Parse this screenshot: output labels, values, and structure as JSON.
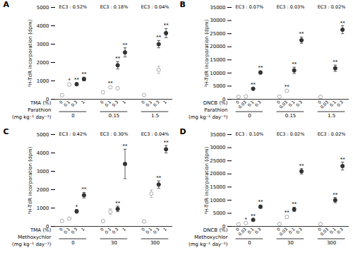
{
  "chart_data": [
    {
      "type": "scatter",
      "title": "A",
      "ylabel": "³H-TdR incorporation (dpm)",
      "xlabel_rows": [
        "TMA (%)",
        "Parathion",
        "(mg kg⁻¹ day⁻¹)"
      ],
      "categories": [
        "0",
        "0.1",
        "0.3",
        "1",
        "0",
        "0.1",
        "0.3",
        "1",
        "0",
        "0.1",
        "0.3",
        "1"
      ],
      "groups": [
        "0",
        "0.15",
        "1.5"
      ],
      "group_annotations": [
        "EC3 : 0.52%",
        "EC3 : 0.18%",
        "EC3 : 0.04%"
      ],
      "series": [
        {
          "color": "#aaaaaa",
          "marker": "open_circle",
          "values": [
            220,
            800,
            null,
            null,
            380,
            650,
            600,
            null,
            230,
            null,
            1600,
            null
          ],
          "errors": [
            30,
            80,
            null,
            null,
            50,
            60,
            60,
            null,
            30,
            null,
            200,
            null
          ]
        },
        {
          "color": "#333333",
          "marker": "circle",
          "values": [
            null,
            null,
            820,
            1100,
            null,
            null,
            1850,
            2550,
            null,
            null,
            3000,
            3600
          ],
          "errors": [
            null,
            null,
            80,
            100,
            null,
            null,
            200,
            250,
            null,
            null,
            200,
            250
          ]
        }
      ],
      "annotations": [
        null,
        "*",
        "**",
        "**",
        null,
        "**",
        "**",
        "**",
        null,
        null,
        "**",
        "**"
      ],
      "ylim": [
        0,
        5000
      ],
      "yticks": [
        0,
        1000,
        2000,
        3000,
        4000,
        5000
      ]
    },
    {
      "type": "scatter",
      "title": "B",
      "ylabel": "³H-TdR incorporation (dpm)",
      "xlabel_rows": [
        "DNCB (%)",
        "Parathion",
        "(mg kg⁻¹ day⁻¹)"
      ],
      "categories": [
        "0",
        "0.03",
        "0.1",
        "0.3",
        "0",
        "0.03",
        "0.1",
        "0.3",
        "0",
        "0.03",
        "0.1",
        "0.3"
      ],
      "groups": [
        "0",
        "0.15",
        "1.5"
      ],
      "group_annotations": [
        "EC3 : 0.07%",
        "EC3 : 0.03%",
        "EC3 : 0.02%"
      ],
      "series": [
        {
          "color": "#aaaaaa",
          "marker": "open_circle",
          "values": [
            900,
            1100,
            null,
            null,
            1000,
            3200,
            null,
            null,
            900,
            null,
            null,
            null
          ],
          "errors": [
            100,
            150,
            null,
            null,
            150,
            400,
            null,
            null,
            100,
            null,
            null,
            null
          ]
        },
        {
          "color": "#333333",
          "marker": "circle",
          "values": [
            null,
            null,
            4000,
            10200,
            null,
            null,
            11000,
            22500,
            null,
            null,
            11800,
            26500
          ],
          "errors": [
            null,
            null,
            400,
            600,
            null,
            null,
            1200,
            1200,
            null,
            null,
            1200,
            1500
          ]
        }
      ],
      "annotations": [
        null,
        null,
        "**",
        "**",
        null,
        "**",
        "**",
        "**",
        null,
        null,
        "**",
        "**"
      ],
      "ylim": [
        0,
        35000
      ],
      "yticks": [
        0,
        5000,
        10000,
        15000,
        20000,
        25000,
        30000,
        35000
      ]
    },
    {
      "type": "scatter",
      "title": "C",
      "ylabel": "³H-TdR incorporation (dpm)",
      "xlabel_rows": [
        "TMA (%)",
        "Methoxychlor",
        "(mg kg⁻¹ day⁻¹)"
      ],
      "categories": [
        "0",
        "0.1",
        "0.3",
        "1",
        "0",
        "0.1",
        "0.3",
        "1",
        "0",
        "0.1",
        "0.3",
        "1"
      ],
      "groups": [
        "0",
        "30",
        "300"
      ],
      "group_annotations": [
        "EC3 : 0.42%",
        "EC3 : 0.30%",
        "EC3 : 0.04%"
      ],
      "series": [
        {
          "color": "#aaaaaa",
          "marker": "open_circle",
          "values": [
            300,
            420,
            null,
            null,
            290,
            800,
            null,
            null,
            270,
            1780,
            null,
            null
          ],
          "errors": [
            40,
            50,
            null,
            null,
            40,
            150,
            null,
            null,
            40,
            200,
            null,
            null
          ]
        },
        {
          "color": "#333333",
          "marker": "circle",
          "values": [
            null,
            null,
            820,
            1700,
            null,
            null,
            950,
            3400,
            null,
            null,
            2280,
            4200
          ],
          "errors": [
            null,
            null,
            100,
            150,
            null,
            null,
            150,
            800,
            null,
            null,
            200,
            200
          ]
        }
      ],
      "annotations": [
        null,
        null,
        "*",
        "**",
        null,
        null,
        "**",
        "**",
        null,
        null,
        "**",
        "**"
      ],
      "ylim": [
        0,
        5000
      ],
      "yticks": [
        0,
        1000,
        2000,
        3000,
        4000,
        5000
      ]
    },
    {
      "type": "scatter",
      "title": "D",
      "ylabel": "³H-TdR incorporation (dpm)",
      "xlabel_rows": [
        "DNCB (%)",
        "Methoxychlor",
        "(mg kg⁻¹ day⁻¹)"
      ],
      "categories": [
        "0",
        "0.03",
        "0.1",
        "0.3",
        "0",
        "0.03",
        "0.1",
        "0.3",
        "0",
        "0.03",
        "0.1",
        "0.3"
      ],
      "groups": [
        "0",
        "30",
        "300"
      ],
      "group_annotations": [
        "EC3 : 0.10%",
        "EC3 : 0.02%",
        "EC3 : 0.02%"
      ],
      "series": [
        {
          "color": "#aaaaaa",
          "marker": "open_circle",
          "values": [
            800,
            1300,
            null,
            null,
            900,
            3600,
            null,
            null,
            900,
            null,
            null,
            null
          ],
          "errors": [
            100,
            200,
            null,
            null,
            100,
            500,
            null,
            null,
            100,
            null,
            null,
            null
          ]
        },
        {
          "color": "#333333",
          "marker": "circle",
          "values": [
            null,
            null,
            2500,
            7500,
            null,
            null,
            6500,
            21000,
            null,
            null,
            10000,
            23000
          ],
          "errors": [
            null,
            null,
            300,
            600,
            null,
            null,
            800,
            1000,
            null,
            null,
            1000,
            1500
          ]
        }
      ],
      "annotations": [
        null,
        "*",
        "**",
        "**",
        null,
        "**",
        "**",
        "**",
        null,
        null,
        "**",
        "**"
      ],
      "ylim": [
        0,
        35000
      ],
      "yticks": [
        0,
        5000,
        10000,
        15000,
        20000,
        25000,
        30000,
        35000
      ]
    }
  ]
}
